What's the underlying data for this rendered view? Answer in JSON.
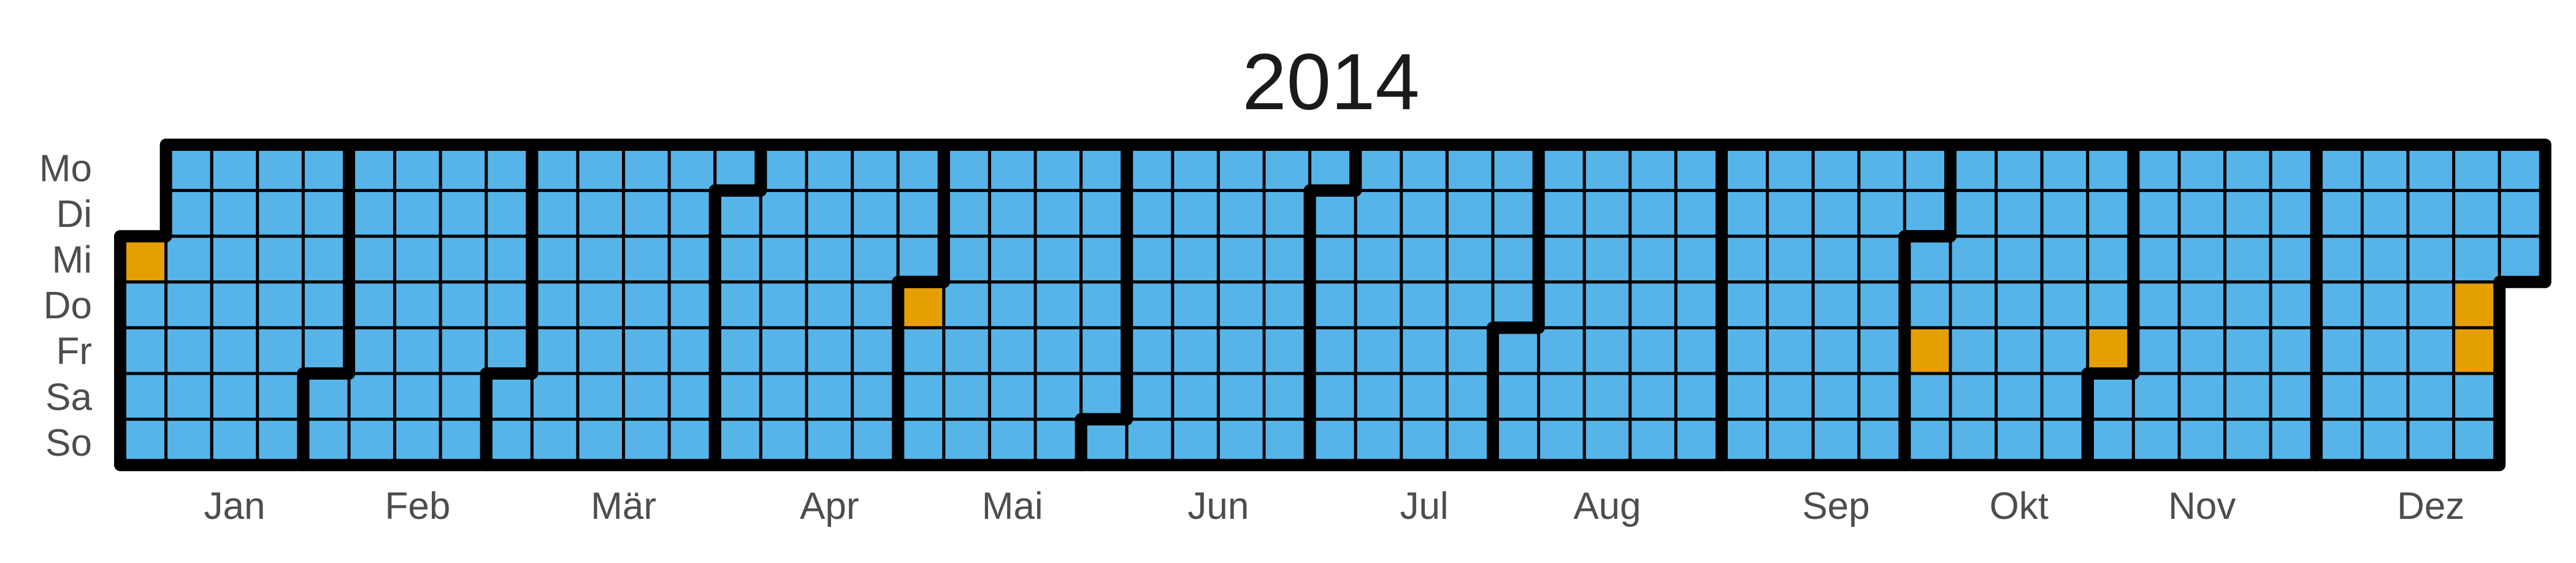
{
  "chart_data": {
    "type": "heatmap",
    "title": "2014",
    "year": 2014,
    "week_start": "Mo",
    "weekday_labels": [
      "Mo",
      "Di",
      "Mi",
      "Do",
      "Fr",
      "Sa",
      "So"
    ],
    "month_labels": [
      "Jan",
      "Feb",
      "Mär",
      "Apr",
      "Mai",
      "Jun",
      "Jul",
      "Aug",
      "Sep",
      "Okt",
      "Nov",
      "Dez"
    ],
    "default_color": "#56B4E9",
    "highlight_color": "#E69F00",
    "highlighted_dates": [
      "2014-01-01",
      "2014-05-01",
      "2014-10-03",
      "2014-10-31",
      "2014-12-25",
      "2014-12-26"
    ],
    "month_boundaries": true,
    "legend": "none"
  }
}
